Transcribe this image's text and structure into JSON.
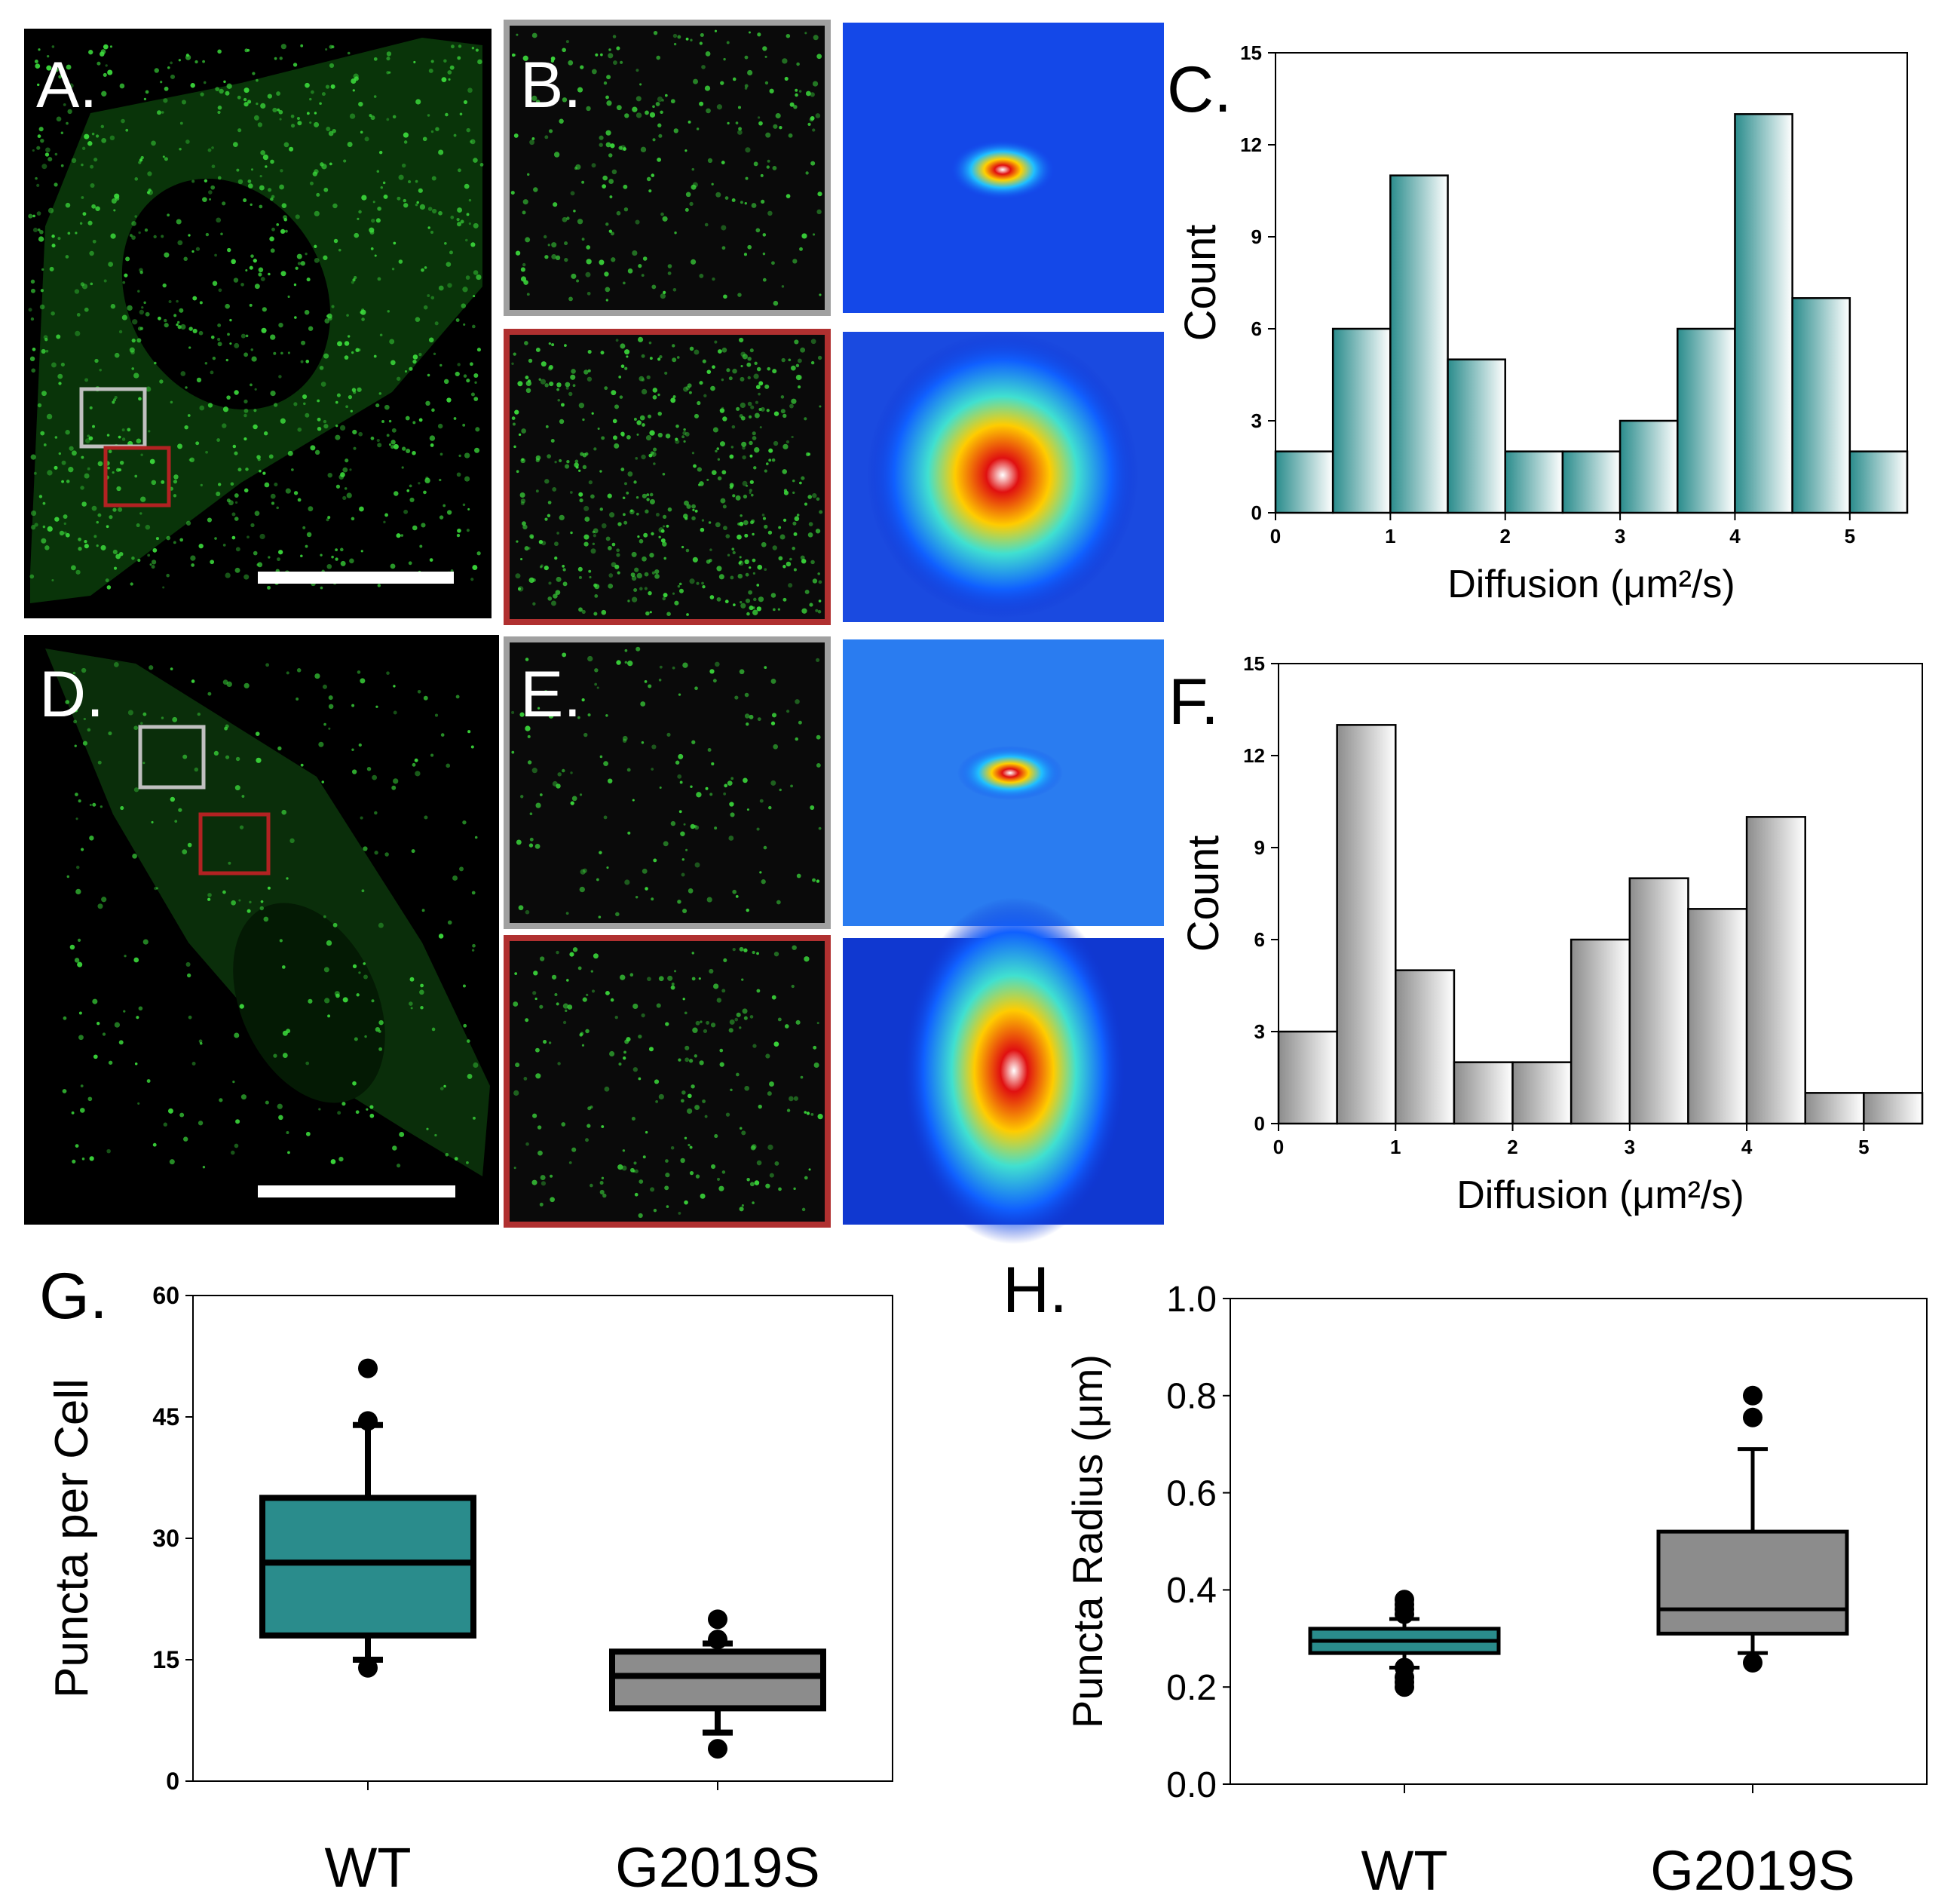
{
  "panel_labels": {
    "a": "A.",
    "b": "B.",
    "c": "C.",
    "d": "D.",
    "e": "E.",
    "f": "F.",
    "g": "G.",
    "h": "H."
  },
  "colors": {
    "teal": "#2a8c8c",
    "gray": "#8c8c8c",
    "green": "#3cdc3c",
    "roi_gray": "#c0c0c0",
    "roi_red": "#b22222"
  },
  "chart_data": [
    {
      "id": "C",
      "type": "bar",
      "bin_edges": [
        0,
        0.5,
        1,
        1.5,
        2,
        2.5,
        3,
        3.5,
        4,
        4.5,
        5,
        5.5
      ],
      "values": [
        2,
        6,
        11,
        5,
        2,
        2,
        3,
        6,
        13,
        7,
        2
      ],
      "xlabel": "Diffusion (μm²/s)",
      "ylabel": "Count",
      "xticks": [
        0,
        1,
        2,
        3,
        4,
        5
      ],
      "yticks": [
        0,
        3,
        6,
        9,
        12,
        15
      ],
      "xlim": [
        0,
        5.5
      ],
      "ylim": [
        0,
        15
      ],
      "grid": false,
      "fill": "teal gradient"
    },
    {
      "id": "F",
      "type": "bar",
      "bin_edges": [
        0,
        0.5,
        1,
        1.5,
        2,
        2.5,
        3,
        3.5,
        4,
        4.5,
        5,
        5.5
      ],
      "values": [
        3,
        13,
        5,
        2,
        2,
        6,
        8,
        7,
        10,
        1,
        1
      ],
      "xlabel": "Diffusion (μm²/s)",
      "ylabel": "Count",
      "xticks": [
        0,
        1,
        2,
        3,
        4,
        5
      ],
      "yticks": [
        0,
        3,
        6,
        9,
        12,
        15
      ],
      "xlim": [
        0,
        5.5
      ],
      "ylim": [
        0,
        15
      ],
      "grid": false,
      "fill": "gray gradient"
    },
    {
      "id": "G",
      "type": "box",
      "categories": [
        "WT",
        "G2019S"
      ],
      "ylabel": "Puncta per Cell",
      "yticks": [
        0,
        15,
        30,
        45,
        60
      ],
      "ylim": [
        0,
        60
      ],
      "boxes": [
        {
          "q1": 18,
          "median": 27,
          "q3": 35,
          "whisker_low": 15,
          "whisker_high": 44,
          "outliers": [
            51,
            44.5,
            14
          ],
          "color": "teal"
        },
        {
          "q1": 9,
          "median": 13,
          "q3": 16,
          "whisker_low": 6,
          "whisker_high": 17,
          "outliers": [
            20,
            17.5,
            4
          ],
          "color": "gray"
        }
      ]
    },
    {
      "id": "H",
      "type": "box",
      "categories": [
        "WT",
        "G2019S"
      ],
      "ylabel": "Puncta Radius (μm)",
      "yticks": [
        "0.0",
        "0.2",
        "0.4",
        "0.6",
        "0.8",
        "1.0"
      ],
      "ylim": [
        0,
        1
      ],
      "boxes": [
        {
          "q1": 0.27,
          "median": 0.295,
          "q3": 0.32,
          "whisker_low": 0.24,
          "whisker_high": 0.34,
          "outliers": [
            0.38,
            0.37,
            0.36,
            0.35,
            0.24,
            0.22,
            0.21,
            0.2
          ],
          "color": "teal"
        },
        {
          "q1": 0.31,
          "median": 0.36,
          "q3": 0.52,
          "whisker_low": 0.27,
          "whisker_high": 0.69,
          "outliers": [
            0.8,
            0.755,
            0.25
          ],
          "color": "gray"
        }
      ]
    }
  ]
}
